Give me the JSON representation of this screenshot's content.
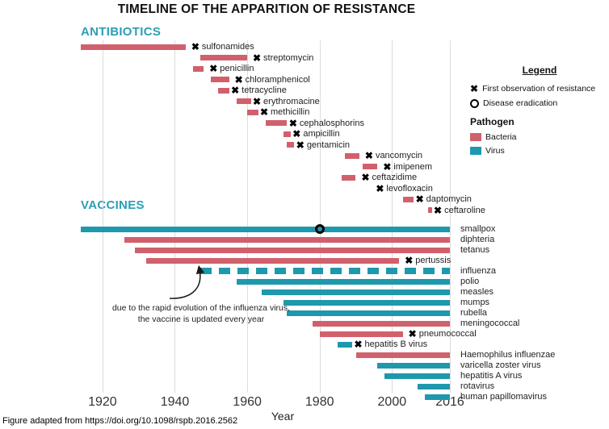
{
  "title": "TIMELINE OF THE APPARITION OF RESISTANCE",
  "footer": "Figure adapted from https://doi.org/10.1098/rspb.2016.2562",
  "annotation": {
    "line1": "due to the rapid evolution of the influenza virus,",
    "line2": "the vaccine is updated every year"
  },
  "legend": {
    "title": "Legend",
    "resistance_label": "First observation of resistance",
    "eradication_label": "Disease eradication",
    "pathogen_title": "Pathogen",
    "bacteria_label": "Bacteria",
    "virus_label": "Virus"
  },
  "icons": {
    "resistance": "✖",
    "eradication": "ring-circle"
  },
  "colors": {
    "bacteria": "#d1606d",
    "virus": "#1e98ac",
    "section_header": "#2b9fb4",
    "grid": "#dcdcdc",
    "marker": "#000000"
  },
  "chart_data": {
    "type": "timeline",
    "title": "TIMELINE OF THE APPARITION OF RESISTANCE",
    "x_axis": {
      "label": "Year",
      "min": 1914,
      "max": 2016,
      "ticks": [
        1920,
        1940,
        1960,
        1980,
        2000,
        2016
      ]
    },
    "grid": true,
    "legend_position": "right",
    "marker_meanings": {
      "x": "First observation of resistance",
      "circle": "Disease eradication"
    },
    "sections": [
      {
        "name": "ANTIBIOTICS",
        "rows": [
          {
            "label": "sulfonamides",
            "pathogen": "bacteria",
            "start": 1914,
            "end": 1943,
            "marker": "resistance",
            "marker_year": 1945,
            "label_side": "inline"
          },
          {
            "label": "streptomycin",
            "pathogen": "bacteria",
            "start": 1947,
            "end": 1960,
            "marker": "resistance",
            "marker_year": 1962,
            "label_side": "inline"
          },
          {
            "label": "penicillin",
            "pathogen": "bacteria",
            "start": 1945,
            "end": 1948,
            "marker": "resistance",
            "marker_year": 1950,
            "label_side": "inline"
          },
          {
            "label": "chloramphenicol",
            "pathogen": "bacteria",
            "start": 1950,
            "end": 1955,
            "marker": "resistance",
            "marker_year": 1957,
            "label_side": "inline"
          },
          {
            "label": "tetracycline",
            "pathogen": "bacteria",
            "start": 1952,
            "end": 1955,
            "marker": "resistance",
            "marker_year": 1956,
            "label_side": "inline"
          },
          {
            "label": "erythromacine",
            "pathogen": "bacteria",
            "start": 1957,
            "end": 1961,
            "marker": "resistance",
            "marker_year": 1962,
            "label_side": "inline"
          },
          {
            "label": "methicillin",
            "pathogen": "bacteria",
            "start": 1960,
            "end": 1963,
            "marker": "resistance",
            "marker_year": 1964,
            "label_side": "inline"
          },
          {
            "label": "cephalosphorins",
            "pathogen": "bacteria",
            "start": 1965,
            "end": 1971,
            "marker": "resistance",
            "marker_year": 1972,
            "label_side": "inline"
          },
          {
            "label": "ampicillin",
            "pathogen": "bacteria",
            "start": 1970,
            "end": 1972,
            "marker": "resistance",
            "marker_year": 1973,
            "label_side": "inline"
          },
          {
            "label": "gentamicin",
            "pathogen": "bacteria",
            "start": 1971,
            "end": 1973,
            "marker": "resistance",
            "marker_year": 1974,
            "label_side": "inline"
          },
          {
            "label": "vancomycin",
            "pathogen": "bacteria",
            "start": 1987,
            "end": 1991,
            "marker": "resistance",
            "marker_year": 1993,
            "label_side": "inline"
          },
          {
            "label": "imipenem",
            "pathogen": "bacteria",
            "start": 1992,
            "end": 1996,
            "marker": "resistance",
            "marker_year": 1998,
            "label_side": "inline"
          },
          {
            "label": "ceftazidime",
            "pathogen": "bacteria",
            "start": 1986,
            "end": 1990,
            "marker": "resistance",
            "marker_year": 1992,
            "label_side": "inline"
          },
          {
            "label": "levofloxacin",
            "pathogen": "bacteria",
            "start": 1996,
            "end": 1996,
            "marker": "resistance",
            "marker_year": 1996,
            "label_side": "inline"
          },
          {
            "label": "daptomycin",
            "pathogen": "bacteria",
            "start": 2003,
            "end": 2006,
            "marker": "resistance",
            "marker_year": 2007,
            "label_side": "inline"
          },
          {
            "label": "ceftaroline",
            "pathogen": "bacteria",
            "start": 2010,
            "end": 2011,
            "marker": "resistance",
            "marker_year": 2012,
            "label_side": "inline"
          }
        ]
      },
      {
        "name": "VACCINES",
        "rows": [
          {
            "label": "smallpox",
            "pathogen": "virus",
            "start": 1914,
            "end": 2016,
            "marker": "eradication",
            "marker_year": 1980,
            "label_side": "right"
          },
          {
            "label": "diphteria",
            "pathogen": "bacteria",
            "start": 1926,
            "end": 2016,
            "marker": null,
            "label_side": "right"
          },
          {
            "label": "tetanus",
            "pathogen": "bacteria",
            "start": 1929,
            "end": 2016,
            "marker": null,
            "label_side": "right"
          },
          {
            "label": "pertussis",
            "pathogen": "bacteria",
            "start": 1932,
            "end": 2002,
            "marker": "resistance",
            "marker_year": 2004,
            "label_side": "inline"
          },
          {
            "label": "influenza",
            "pathogen": "virus",
            "start": 1947,
            "end": 2016,
            "marker": null,
            "label_side": "right",
            "dashed": true
          },
          {
            "label": "polio",
            "pathogen": "virus",
            "start": 1957,
            "end": 2016,
            "marker": null,
            "label_side": "right"
          },
          {
            "label": "measles",
            "pathogen": "virus",
            "start": 1964,
            "end": 2016,
            "marker": null,
            "label_side": "right"
          },
          {
            "label": "mumps",
            "pathogen": "virus",
            "start": 1970,
            "end": 2016,
            "marker": null,
            "label_side": "right"
          },
          {
            "label": "rubella",
            "pathogen": "virus",
            "start": 1971,
            "end": 2016,
            "marker": null,
            "label_side": "right"
          },
          {
            "label": "meningococcal",
            "pathogen": "bacteria",
            "start": 1978,
            "end": 2016,
            "marker": null,
            "label_side": "right"
          },
          {
            "label": "pneumococcal",
            "pathogen": "bacteria",
            "start": 1980,
            "end": 2003,
            "marker": "resistance",
            "marker_year": 2005,
            "label_side": "inline"
          },
          {
            "label": "hepatitis B virus",
            "pathogen": "virus",
            "start": 1985,
            "end": 1989,
            "marker": "resistance",
            "marker_year": 1990,
            "label_side": "inline"
          },
          {
            "label": "Haemophilus influenzae",
            "pathogen": "bacteria",
            "start": 1990,
            "end": 2016,
            "marker": null,
            "label_side": "right"
          },
          {
            "label": "varicella zoster virus",
            "pathogen": "virus",
            "start": 1996,
            "end": 2016,
            "marker": null,
            "label_side": "right"
          },
          {
            "label": "hepatitis A virus",
            "pathogen": "virus",
            "start": 1998,
            "end": 2016,
            "marker": null,
            "label_side": "right"
          },
          {
            "label": "rotavirus",
            "pathogen": "virus",
            "start": 2007,
            "end": 2016,
            "marker": null,
            "label_side": "right"
          },
          {
            "label": "human papillomavirus",
            "pathogen": "virus",
            "start": 2009,
            "end": 2016,
            "marker": null,
            "label_side": "right"
          }
        ]
      }
    ]
  }
}
